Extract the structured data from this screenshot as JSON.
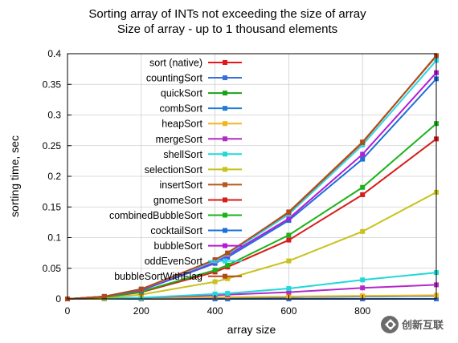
{
  "chart_data": {
    "type": "line",
    "title": [
      "Sorting array of INTs not exceeding the size of array",
      "Size of array - up to 1 thousand elements"
    ],
    "xlabel": "array size",
    "ylabel": "sorting time, sec",
    "xlim": [
      0,
      1000
    ],
    "ylim": [
      0,
      0.4
    ],
    "x_ticks": [
      "0",
      "200",
      "400",
      "600",
      "800"
    ],
    "y_ticks": [
      "0",
      "0.05",
      "0.1",
      "0.15",
      "0.2",
      "0.25",
      "0.3",
      "0.35",
      "0.4"
    ],
    "grid": true,
    "legend_position": "top-left",
    "x": [
      0,
      100,
      200,
      400,
      434,
      600,
      800,
      1000
    ],
    "series": [
      {
        "name": "sort (native)",
        "color": "#e8151b",
        "values": [
          0,
          0,
          0,
          0,
          0,
          0,
          0,
          0
        ]
      },
      {
        "name": "countingSort",
        "color": "#3a6fd8",
        "values": [
          0,
          0,
          0,
          0,
          0,
          0,
          0,
          0
        ]
      },
      {
        "name": "quickSort",
        "color": "#17a317",
        "values": [
          0,
          0,
          0.001,
          0.002,
          0.002,
          0.003,
          0.004,
          0.005
        ]
      },
      {
        "name": "combSort",
        "color": "#1f7dd8",
        "values": [
          0,
          0,
          0.001,
          0.002,
          0.002,
          0.003,
          0.004,
          0.005
        ]
      },
      {
        "name": "heapSort",
        "color": "#f4b41a",
        "values": [
          0,
          0,
          0.001,
          0.003,
          0.003,
          0.004,
          0.005,
          0.006
        ]
      },
      {
        "name": "mergeSort",
        "color": "#b32ac8",
        "values": [
          0,
          0.001,
          0.002,
          0.006,
          0.007,
          0.011,
          0.018,
          0.023
        ]
      },
      {
        "name": "shellSort",
        "color": "#20d8d8",
        "values": [
          0,
          0.001,
          0.002,
          0.008,
          0.009,
          0.017,
          0.031,
          0.043
        ]
      },
      {
        "name": "selectionSort",
        "color": "#c8c21b",
        "values": [
          0,
          0.002,
          0.007,
          0.028,
          0.033,
          0.062,
          0.11,
          0.174
        ]
      },
      {
        "name": "insertSort",
        "color": "#b35a1b",
        "values": [
          0,
          0.004,
          0.016,
          0.063,
          0.074,
          0.142,
          0.256,
          0.396
        ]
      },
      {
        "name": "gnomeSort",
        "color": "#d81b1b",
        "values": [
          0,
          0.003,
          0.011,
          0.044,
          0.052,
          0.096,
          0.17,
          0.261
        ]
      },
      {
        "name": "combinedBubbleSort",
        "color": "#1bb31b",
        "values": [
          0,
          0.003,
          0.012,
          0.047,
          0.055,
          0.104,
          0.182,
          0.286
        ]
      },
      {
        "name": "cocktailSort",
        "color": "#1b6fd8",
        "values": [
          0,
          0.004,
          0.014,
          0.058,
          0.068,
          0.128,
          0.228,
          0.359
        ]
      },
      {
        "name": "bubbleSort",
        "color": "#b31bd8",
        "values": [
          0,
          0.004,
          0.015,
          0.06,
          0.071,
          0.131,
          0.236,
          0.369
        ]
      },
      {
        "name": "oddEvenSort",
        "color": "#2ad8e8",
        "values": [
          0,
          0.004,
          0.016,
          0.062,
          0.073,
          0.138,
          0.251,
          0.389
        ]
      },
      {
        "name": "bubbleSortWithFlag",
        "color": "#b34a1b",
        "values": [
          0,
          0.004,
          0.016,
          0.064,
          0.075,
          0.141,
          0.255,
          0.397
        ]
      }
    ]
  },
  "watermark": {
    "text": "创新互联",
    "logo_icon": "brand-logo-icon"
  }
}
